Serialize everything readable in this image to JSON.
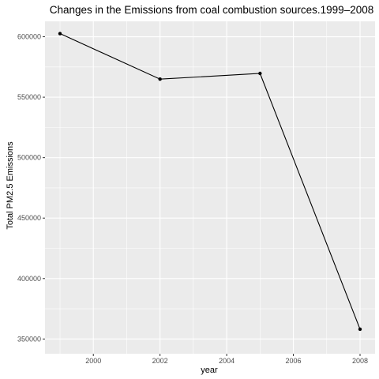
{
  "chart_data": {
    "type": "line",
    "title": "Changes in the Emissions from coal combustion sources.1999–2008",
    "xlabel": "year",
    "ylabel": "Total PM2.5 Emissions",
    "x": [
      1999,
      2002,
      2005,
      2008
    ],
    "series": [
      {
        "values": [
          602624,
          564941,
          569655,
          358084
        ]
      }
    ],
    "xlim": [
      1998.55,
      2008.45
    ],
    "ylim": [
      337807,
      612762
    ],
    "x_ticks": [
      2000,
      2002,
      2004,
      2006,
      2008
    ],
    "x_tick_labels": [
      "2000",
      "2002",
      "2004",
      "2006",
      "2008"
    ],
    "y_ticks": [
      350000,
      400000,
      450000,
      500000,
      550000,
      600000
    ],
    "y_tick_labels": [
      "350000",
      "400000",
      "450000",
      "500000",
      "550000",
      "600000"
    ],
    "grid": true,
    "colors": {
      "panel": "#ebebeb",
      "grid": "#ffffff",
      "line": "#000000"
    }
  }
}
